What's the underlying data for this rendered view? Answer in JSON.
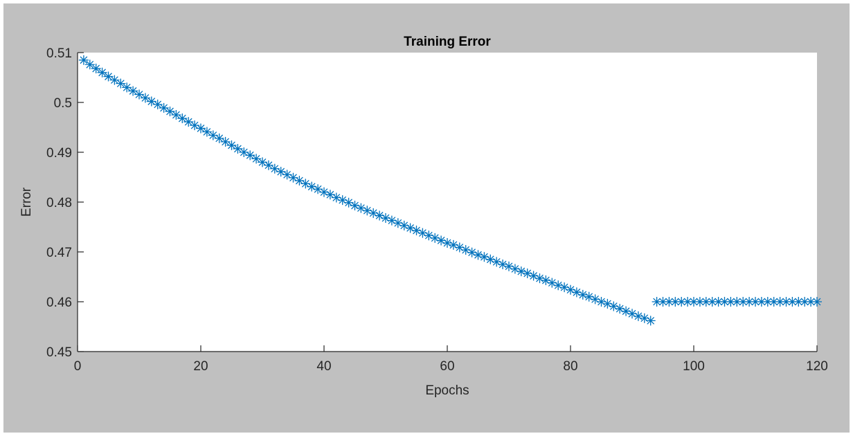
{
  "figure": {
    "background": "#c0c0c0",
    "plot_background": "#ffffff",
    "series_color": "#0072bd"
  },
  "chart_data": {
    "type": "scatter",
    "title": "Training Error",
    "xlabel": "Epochs",
    "ylabel": "Error",
    "xlim": [
      0,
      120
    ],
    "ylim": [
      0.45,
      0.51
    ],
    "xticks": [
      0,
      20,
      40,
      60,
      80,
      100,
      120
    ],
    "xtick_labels": [
      "0",
      "20",
      "40",
      "60",
      "80",
      "100",
      "120"
    ],
    "yticks": [
      0.45,
      0.46,
      0.47,
      0.48,
      0.49,
      0.5,
      0.51
    ],
    "ytick_labels": [
      "0.45",
      "0.46",
      "0.47",
      "0.48",
      "0.49",
      "0.5",
      "0.51"
    ],
    "grid": false,
    "marker": "asterisk",
    "series": [
      {
        "x": [
          1,
          2,
          3,
          4,
          5,
          6,
          7,
          8,
          9,
          10,
          11,
          12,
          13,
          14,
          15,
          16,
          17,
          18,
          19,
          20,
          21,
          22,
          23,
          24,
          25,
          26,
          27,
          28,
          29,
          30,
          31,
          32,
          33,
          34,
          35,
          36,
          37,
          38,
          39,
          40,
          41,
          42,
          43,
          44,
          45,
          46,
          47,
          48,
          49,
          50,
          51,
          52,
          53,
          54,
          55,
          56,
          57,
          58,
          59,
          60,
          61,
          62,
          63,
          64,
          65,
          66,
          67,
          68,
          69,
          70,
          71,
          72,
          73,
          74,
          75,
          76,
          77,
          78,
          79,
          80,
          81,
          82,
          83,
          84,
          85,
          86,
          87,
          88,
          89,
          90,
          91,
          92,
          93,
          94,
          95,
          96,
          97,
          98,
          99,
          100,
          101,
          102,
          103,
          104,
          105,
          106,
          107,
          108,
          109,
          110,
          111,
          112,
          113,
          114,
          115,
          116,
          117,
          118,
          119,
          120
        ],
        "y": [
          0.5085,
          0.5076,
          0.5068,
          0.506,
          0.5052,
          0.5045,
          0.5038,
          0.503,
          0.5023,
          0.5016,
          0.5009,
          0.5002,
          0.4996,
          0.4989,
          0.4982,
          0.4975,
          0.4968,
          0.4961,
          0.4954,
          0.4948,
          0.4941,
          0.4934,
          0.4928,
          0.4921,
          0.4914,
          0.4907,
          0.49,
          0.4894,
          0.4887,
          0.488,
          0.4874,
          0.4867,
          0.4861,
          0.4855,
          0.4849,
          0.4843,
          0.4837,
          0.4831,
          0.4826,
          0.482,
          0.4815,
          0.4809,
          0.4804,
          0.4799,
          0.4793,
          0.4788,
          0.4783,
          0.4778,
          0.4773,
          0.4768,
          0.4763,
          0.4758,
          0.4753,
          0.4748,
          0.4743,
          0.4738,
          0.4733,
          0.4728,
          0.4723,
          0.4718,
          0.4714,
          0.4709,
          0.4704,
          0.4699,
          0.4694,
          0.469,
          0.4685,
          0.468,
          0.4675,
          0.4671,
          0.4666,
          0.4661,
          0.4657,
          0.4652,
          0.4647,
          0.4643,
          0.4638,
          0.4633,
          0.4629,
          0.4624,
          0.4619,
          0.4614,
          0.461,
          0.4605,
          0.46,
          0.4596,
          0.4591,
          0.4586,
          0.4581,
          0.4576,
          0.4571,
          0.4567,
          0.4562,
          0.46,
          0.46,
          0.46,
          0.46,
          0.46,
          0.46,
          0.46,
          0.46,
          0.46,
          0.46,
          0.46,
          0.46,
          0.46,
          0.46,
          0.46,
          0.46,
          0.46,
          0.46,
          0.46,
          0.46,
          0.46,
          0.46,
          0.46,
          0.46,
          0.46,
          0.46,
          0.46
        ]
      }
    ]
  }
}
